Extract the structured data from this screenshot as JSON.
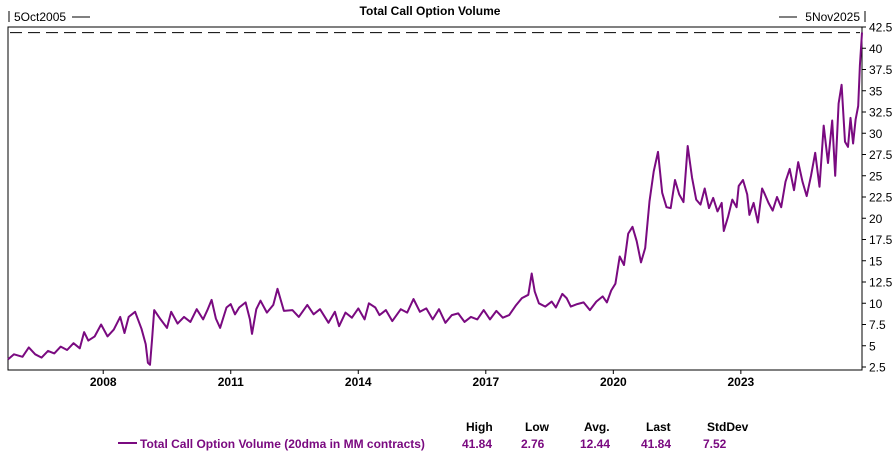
{
  "chart_data": {
    "type": "line",
    "title": "Total Call Option Volume",
    "start_label": "5Oct2005",
    "end_label": "5Nov2025",
    "x_range": [
      2005.76,
      2025.85
    ],
    "ylim": [
      2.5,
      42.5
    ],
    "y_ticks": [
      "2.5",
      "5",
      "7.5",
      "10",
      "12.5",
      "15",
      "17.5",
      "20",
      "22.5",
      "25",
      "27.5",
      "30",
      "32.5",
      "35",
      "37.5",
      "40",
      "42.5"
    ],
    "x_ticks": [
      {
        "label": "2008",
        "value": 2008.0
      },
      {
        "label": "2011",
        "value": 2011.0
      },
      {
        "label": "2014",
        "value": 2014.0
      },
      {
        "label": "2017",
        "value": 2017.0
      },
      {
        "label": "2020",
        "value": 2020.0
      },
      {
        "label": "2023",
        "value": 2023.0
      }
    ],
    "reference_line": {
      "value": 41.84,
      "style": "dashed"
    },
    "series": [
      {
        "name": "Total Call Option Volume (20dma in MM contracts)",
        "color": "#7a0a80",
        "points": [
          [
            2005.76,
            3.4
          ],
          [
            2005.9,
            4.0
          ],
          [
            2006.1,
            3.7
          ],
          [
            2006.25,
            4.8
          ],
          [
            2006.4,
            4.0
          ],
          [
            2006.55,
            3.6
          ],
          [
            2006.7,
            4.4
          ],
          [
            2006.85,
            4.1
          ],
          [
            2007.0,
            4.9
          ],
          [
            2007.15,
            4.5
          ],
          [
            2007.3,
            5.3
          ],
          [
            2007.45,
            4.7
          ],
          [
            2007.55,
            6.6
          ],
          [
            2007.65,
            5.6
          ],
          [
            2007.8,
            6.1
          ],
          [
            2007.95,
            7.5
          ],
          [
            2008.1,
            6.1
          ],
          [
            2008.25,
            6.9
          ],
          [
            2008.4,
            8.4
          ],
          [
            2008.5,
            6.5
          ],
          [
            2008.6,
            8.4
          ],
          [
            2008.75,
            9.0
          ],
          [
            2008.9,
            7.0
          ],
          [
            2009.0,
            5.2
          ],
          [
            2009.05,
            3.0
          ],
          [
            2009.1,
            2.76
          ],
          [
            2009.15,
            5.8
          ],
          [
            2009.2,
            9.2
          ],
          [
            2009.35,
            8.1
          ],
          [
            2009.5,
            7.1
          ],
          [
            2009.6,
            9.0
          ],
          [
            2009.75,
            7.6
          ],
          [
            2009.9,
            8.4
          ],
          [
            2010.05,
            7.8
          ],
          [
            2010.2,
            9.3
          ],
          [
            2010.35,
            8.1
          ],
          [
            2010.45,
            9.2
          ],
          [
            2010.55,
            10.4
          ],
          [
            2010.65,
            8.2
          ],
          [
            2010.75,
            7.1
          ],
          [
            2010.9,
            9.5
          ],
          [
            2011.0,
            9.9
          ],
          [
            2011.1,
            8.7
          ],
          [
            2011.2,
            9.5
          ],
          [
            2011.35,
            10.1
          ],
          [
            2011.45,
            8.1
          ],
          [
            2011.5,
            6.4
          ],
          [
            2011.6,
            9.3
          ],
          [
            2011.7,
            10.3
          ],
          [
            2011.85,
            8.9
          ],
          [
            2012.0,
            9.8
          ],
          [
            2012.1,
            11.7
          ],
          [
            2012.25,
            9.1
          ],
          [
            2012.45,
            9.2
          ],
          [
            2012.6,
            8.4
          ],
          [
            2012.8,
            9.8
          ],
          [
            2012.95,
            8.7
          ],
          [
            2013.1,
            9.3
          ],
          [
            2013.3,
            7.7
          ],
          [
            2013.45,
            9.0
          ],
          [
            2013.55,
            7.3
          ],
          [
            2013.7,
            8.9
          ],
          [
            2013.85,
            8.3
          ],
          [
            2014.0,
            9.4
          ],
          [
            2014.15,
            8.1
          ],
          [
            2014.25,
            10.0
          ],
          [
            2014.4,
            9.5
          ],
          [
            2014.5,
            8.6
          ],
          [
            2014.65,
            9.2
          ],
          [
            2014.8,
            7.9
          ],
          [
            2015.0,
            9.3
          ],
          [
            2015.15,
            8.9
          ],
          [
            2015.3,
            10.5
          ],
          [
            2015.45,
            9.0
          ],
          [
            2015.6,
            9.4
          ],
          [
            2015.75,
            8.1
          ],
          [
            2015.9,
            9.3
          ],
          [
            2016.05,
            7.7
          ],
          [
            2016.2,
            8.6
          ],
          [
            2016.35,
            8.8
          ],
          [
            2016.5,
            7.8
          ],
          [
            2016.65,
            8.4
          ],
          [
            2016.8,
            8.1
          ],
          [
            2016.95,
            9.2
          ],
          [
            2017.1,
            8.1
          ],
          [
            2017.25,
            9.1
          ],
          [
            2017.4,
            8.3
          ],
          [
            2017.55,
            8.6
          ],
          [
            2017.7,
            9.7
          ],
          [
            2017.85,
            10.6
          ],
          [
            2018.0,
            11.0
          ],
          [
            2018.08,
            13.5
          ],
          [
            2018.15,
            11.4
          ],
          [
            2018.25,
            10.0
          ],
          [
            2018.4,
            9.6
          ],
          [
            2018.55,
            10.2
          ],
          [
            2018.65,
            9.5
          ],
          [
            2018.8,
            11.1
          ],
          [
            2018.9,
            10.6
          ],
          [
            2019.0,
            9.6
          ],
          [
            2019.15,
            9.9
          ],
          [
            2019.3,
            10.1
          ],
          [
            2019.45,
            9.2
          ],
          [
            2019.6,
            10.2
          ],
          [
            2019.75,
            10.8
          ],
          [
            2019.85,
            10.1
          ],
          [
            2019.95,
            11.5
          ],
          [
            2020.05,
            12.3
          ],
          [
            2020.15,
            15.5
          ],
          [
            2020.25,
            14.5
          ],
          [
            2020.35,
            18.2
          ],
          [
            2020.45,
            19.0
          ],
          [
            2020.55,
            17.3
          ],
          [
            2020.65,
            14.8
          ],
          [
            2020.75,
            16.5
          ],
          [
            2020.85,
            22.0
          ],
          [
            2020.95,
            25.5
          ],
          [
            2021.05,
            27.8
          ],
          [
            2021.15,
            23.0
          ],
          [
            2021.25,
            21.3
          ],
          [
            2021.35,
            21.2
          ],
          [
            2021.45,
            24.5
          ],
          [
            2021.55,
            22.8
          ],
          [
            2021.65,
            21.9
          ],
          [
            2021.75,
            28.5
          ],
          [
            2021.85,
            24.8
          ],
          [
            2021.95,
            22.2
          ],
          [
            2022.05,
            21.6
          ],
          [
            2022.15,
            23.5
          ],
          [
            2022.25,
            21.2
          ],
          [
            2022.35,
            22.4
          ],
          [
            2022.45,
            20.8
          ],
          [
            2022.55,
            21.8
          ],
          [
            2022.6,
            18.5
          ],
          [
            2022.7,
            20.2
          ],
          [
            2022.8,
            22.2
          ],
          [
            2022.9,
            21.3
          ],
          [
            2022.95,
            23.8
          ],
          [
            2023.05,
            24.5
          ],
          [
            2023.15,
            22.8
          ],
          [
            2023.2,
            20.4
          ],
          [
            2023.3,
            21.8
          ],
          [
            2023.4,
            19.5
          ],
          [
            2023.5,
            23.5
          ],
          [
            2023.55,
            23.0
          ],
          [
            2023.65,
            21.8
          ],
          [
            2023.75,
            20.9
          ],
          [
            2023.85,
            22.5
          ],
          [
            2023.95,
            21.3
          ],
          [
            2024.05,
            24.3
          ],
          [
            2024.15,
            25.8
          ],
          [
            2024.25,
            23.3
          ],
          [
            2024.35,
            26.6
          ],
          [
            2024.45,
            24.3
          ],
          [
            2024.55,
            22.6
          ],
          [
            2024.65,
            25.0
          ],
          [
            2024.75,
            27.7
          ],
          [
            2024.85,
            23.7
          ],
          [
            2024.95,
            30.9
          ],
          [
            2025.05,
            26.5
          ],
          [
            2025.15,
            31.5
          ],
          [
            2025.22,
            25.0
          ],
          [
            2025.3,
            33.5
          ],
          [
            2025.37,
            35.7
          ],
          [
            2025.45,
            29.0
          ],
          [
            2025.52,
            28.4
          ],
          [
            2025.58,
            31.8
          ],
          [
            2025.64,
            28.8
          ],
          [
            2025.7,
            31.6
          ],
          [
            2025.76,
            33.2
          ],
          [
            2025.8,
            38.0
          ],
          [
            2025.85,
            41.84
          ]
        ]
      }
    ],
    "stats": {
      "headers": [
        "High",
        "Low",
        "Avg.",
        "Last",
        "StdDev"
      ],
      "values": [
        "41.84",
        "2.76",
        "12.44",
        "41.84",
        "7.52"
      ]
    }
  }
}
